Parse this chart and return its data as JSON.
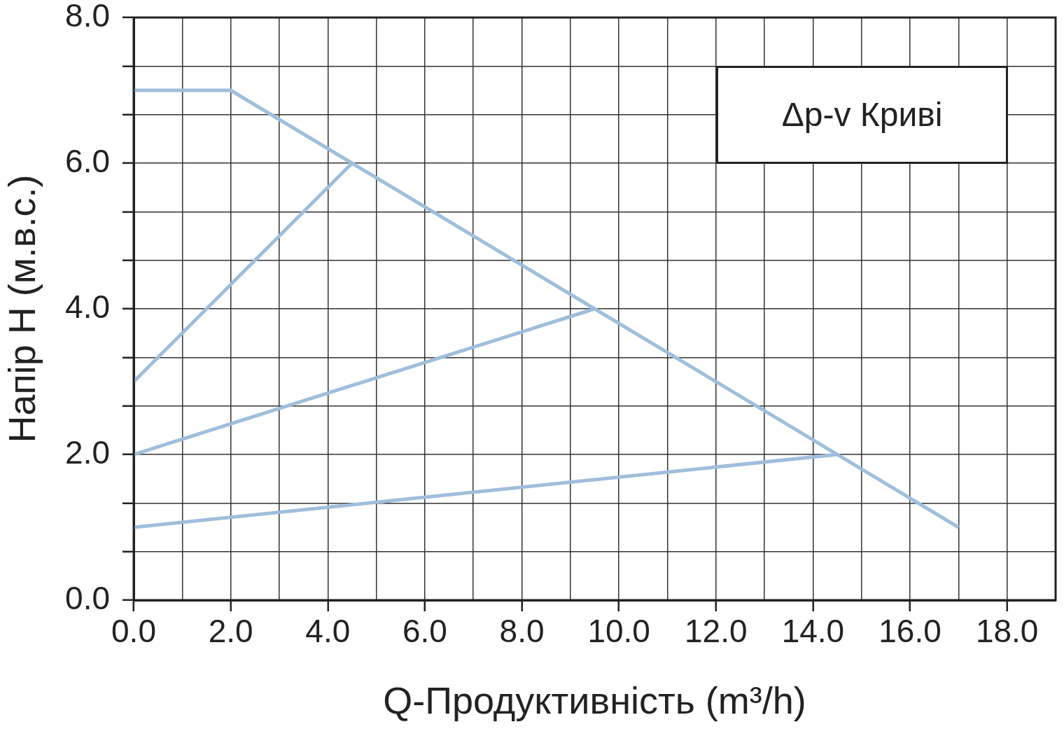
{
  "chart_data": {
    "type": "line",
    "title": "Δp-v Криві",
    "xlabel": "Q-Продуктивність (m³/h)",
    "ylabel": "Напір Н (м.в.с.)",
    "series": [
      {
        "color": "#9fbedb",
        "x": [
          0,
          2,
          17
        ],
        "values": [
          7,
          7,
          1
        ]
      },
      {
        "color": "#9fbedb",
        "x": [
          0,
          4.5
        ],
        "values": [
          3,
          6
        ]
      },
      {
        "color": "#9fbedb",
        "x": [
          0,
          9.5
        ],
        "values": [
          2,
          4
        ]
      },
      {
        "color": "#9fbedb",
        "x": [
          0,
          14.5
        ],
        "values": [
          1,
          2
        ]
      }
    ],
    "xlim": [
      0,
      19
    ],
    "xticks": [
      {
        "value": 0,
        "label": "0.0"
      },
      {
        "value": 1,
        "label": null
      },
      {
        "value": 2,
        "label": "2.0"
      },
      {
        "value": 3,
        "label": null
      },
      {
        "value": 4,
        "label": "4.0"
      },
      {
        "value": 5,
        "label": null
      },
      {
        "value": 6,
        "label": "6.0"
      },
      {
        "value": 7,
        "label": null
      },
      {
        "value": 8,
        "label": "8.0"
      },
      {
        "value": 9,
        "label": null
      },
      {
        "value": 10,
        "label": "10.0"
      },
      {
        "value": 11,
        "label": null
      },
      {
        "value": 12,
        "label": "12.0"
      },
      {
        "value": 13,
        "label": null
      },
      {
        "value": 14,
        "label": "14.0"
      },
      {
        "value": 15,
        "label": null
      },
      {
        "value": 16,
        "label": "16.0"
      },
      {
        "value": 17,
        "label": null
      },
      {
        "value": 18,
        "label": "18.0"
      },
      {
        "value": 19,
        "label": null
      }
    ],
    "ylim": [
      0,
      8
    ],
    "yticks": [
      {
        "value": 0,
        "label": "0.0"
      },
      {
        "value": 0.667,
        "label": null
      },
      {
        "value": 1.333,
        "label": null
      },
      {
        "value": 2,
        "label": "2.0"
      },
      {
        "value": 2.667,
        "label": null
      },
      {
        "value": 3.333,
        "label": null
      },
      {
        "value": 4,
        "label": "4.0"
      },
      {
        "value": 4.667,
        "label": null
      },
      {
        "value": 5.333,
        "label": null
      },
      {
        "value": 6,
        "label": "6.0"
      },
      {
        "value": 6.667,
        "label": null
      },
      {
        "value": 7.333,
        "label": null
      },
      {
        "value": 8,
        "label": "8.0"
      }
    ],
    "grid": true
  }
}
